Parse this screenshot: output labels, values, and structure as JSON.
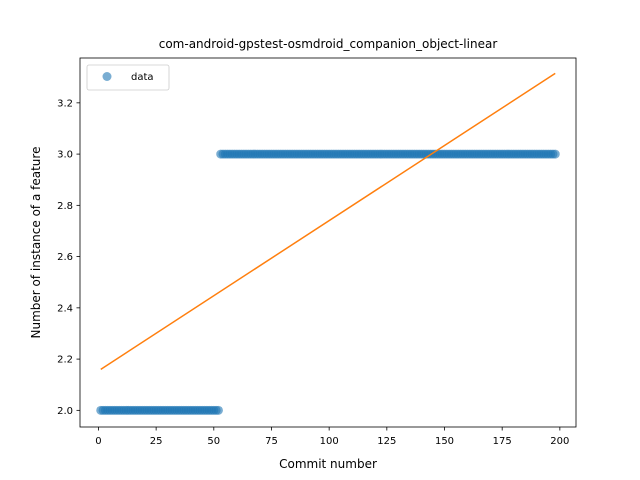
{
  "chart_data": {
    "type": "scatter",
    "title": "com-android-gpstest-osmdroid_companion_object-linear",
    "xlabel": "Commit number",
    "ylabel": "Number of instance of a feature",
    "xlim": [
      -8,
      207
    ],
    "ylim": [
      1.935,
      3.375
    ],
    "xticks": [
      0,
      25,
      50,
      75,
      100,
      125,
      150,
      175,
      200
    ],
    "yticks": [
      2.0,
      2.2,
      2.4,
      2.6,
      2.8,
      3.0,
      3.2
    ],
    "ytick_labels": [
      "2.0",
      "2.2",
      "2.4",
      "2.6",
      "2.8",
      "3.0",
      "3.2"
    ],
    "grid": false,
    "legend": {
      "position": "top-left",
      "entries": [
        "data"
      ]
    },
    "series": [
      {
        "name": "data",
        "kind": "scatter",
        "color": "#1f77b4",
        "segments": [
          {
            "x_start": 1,
            "x_end": 52,
            "y": 2.0
          },
          {
            "x_start": 53,
            "x_end": 198,
            "y": 3.0
          }
        ]
      },
      {
        "kind": "line",
        "color": "#ff7f0e",
        "x": [
          1,
          198
        ],
        "y": [
          2.16,
          3.315
        ]
      }
    ]
  }
}
